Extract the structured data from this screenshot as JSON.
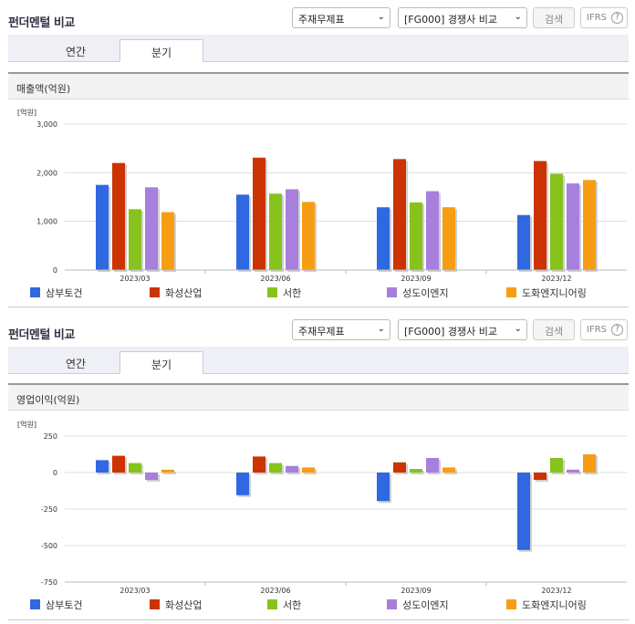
{
  "panels": [
    {
      "title": "펀더멘털 비교",
      "select1": "주재무제표",
      "select2": "[FG000] 경쟁사 비교",
      "search_label": "검색",
      "ifrs_label": "IFRS",
      "tabs": [
        "연간",
        "분기"
      ],
      "active_tab": "분기",
      "subtitle": "매출액(억원)"
    },
    {
      "title": "펀더멘털 비교",
      "select1": "주재무제표",
      "select2": "[FG000] 경쟁사 비교",
      "search_label": "검색",
      "ifrs_label": "IFRS",
      "tabs": [
        "연간",
        "분기"
      ],
      "active_tab": "분기",
      "subtitle": "영업이익(억원)"
    }
  ],
  "chart_data": [
    {
      "type": "bar",
      "unit": "[억원]",
      "categories": [
        "2023/03",
        "2023/06",
        "2023/09",
        "2023/12"
      ],
      "ylim": [
        0,
        3000
      ],
      "yticks": [
        0,
        1000,
        2000,
        3000
      ],
      "ytick_labels": [
        "0",
        "1,000",
        "2,000",
        "3,000"
      ],
      "grid": true,
      "legend": "bottom",
      "series": [
        {
          "name": "삼부토건",
          "color": "#2f68e0",
          "values": [
            1750,
            1550,
            1290,
            1130
          ]
        },
        {
          "name": "화성산업",
          "color": "#cc3300",
          "values": [
            2200,
            2310,
            2280,
            2240
          ]
        },
        {
          "name": "서한",
          "color": "#88c21d",
          "values": [
            1250,
            1570,
            1390,
            1980
          ]
        },
        {
          "name": "성도이엔지",
          "color": "#a77fdc",
          "values": [
            1700,
            1660,
            1620,
            1780
          ]
        },
        {
          "name": "도화엔지니어링",
          "color": "#f79d13",
          "values": [
            1190,
            1400,
            1290,
            1850
          ]
        }
      ]
    },
    {
      "type": "bar",
      "unit": "[억원]",
      "categories": [
        "2023/03",
        "2023/06",
        "2023/09",
        "2023/12"
      ],
      "ylim": [
        -750,
        250
      ],
      "yticks": [
        250,
        0,
        -250,
        -500,
        -750
      ],
      "ytick_labels": [
        "250",
        "0",
        "-250",
        "-500",
        "-750"
      ],
      "grid": true,
      "legend": "bottom",
      "series": [
        {
          "name": "삼부토건",
          "color": "#2f68e0",
          "values": [
            85,
            -155,
            -195,
            -530
          ]
        },
        {
          "name": "화성산업",
          "color": "#cc3300",
          "values": [
            115,
            110,
            70,
            -50
          ]
        },
        {
          "name": "서한",
          "color": "#88c21d",
          "values": [
            65,
            65,
            25,
            100
          ]
        },
        {
          "name": "성도이엔지",
          "color": "#a77fdc",
          "values": [
            -50,
            45,
            100,
            20
          ]
        },
        {
          "name": "도화엔지니어링",
          "color": "#f79d13",
          "values": [
            20,
            35,
            35,
            125
          ]
        }
      ]
    }
  ]
}
